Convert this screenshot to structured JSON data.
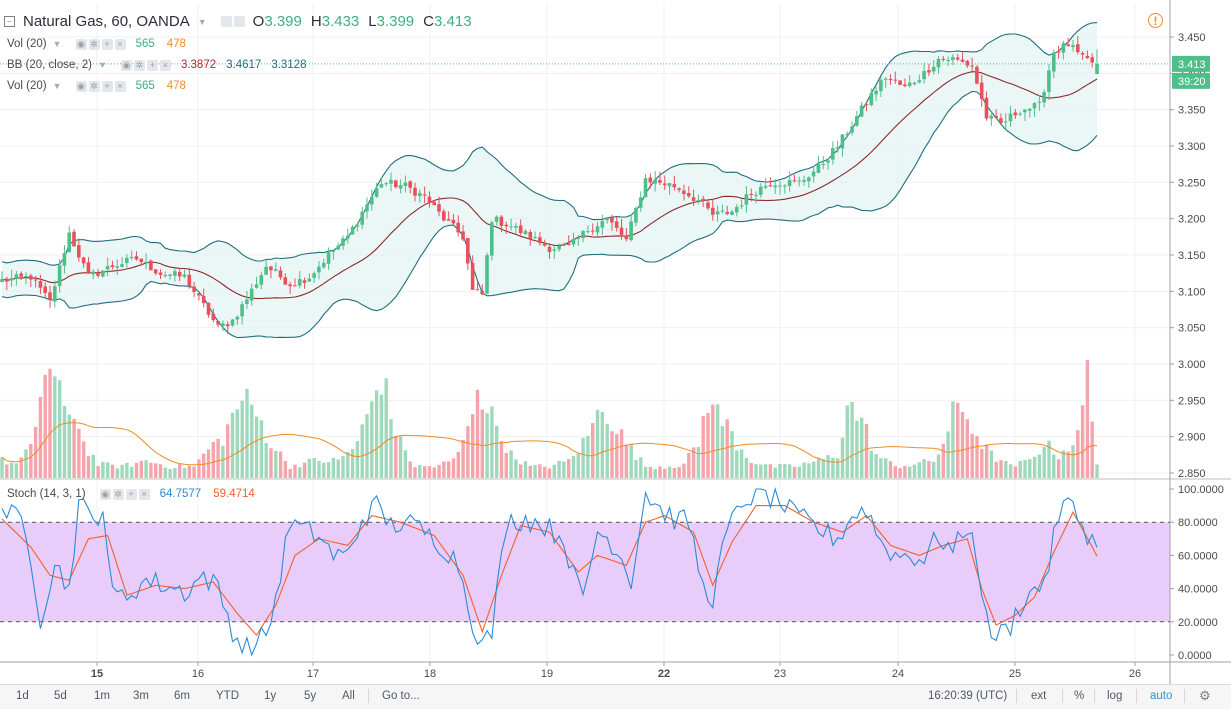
{
  "header": {
    "symbol_title": "Natural Gas, 60, OANDA",
    "ohlc": [
      {
        "key": "O",
        "value": "3.399"
      },
      {
        "key": "H",
        "value": "3.433"
      },
      {
        "key": "L",
        "value": "3.399"
      },
      {
        "key": "C",
        "value": "3.413"
      }
    ]
  },
  "legends": {
    "vol1": {
      "name": "Vol (20)",
      "v1": "565",
      "v2": "478"
    },
    "bb": {
      "name": "BB (20, close, 2)",
      "basis": "3.3872",
      "upper": "3.4617",
      "lower": "3.3128"
    },
    "vol2": {
      "name": "Vol (20)",
      "v1": "565",
      "v2": "478"
    },
    "stoch": {
      "name": "Stoch (14, 3, 1)",
      "k": "64.7577",
      "d": "59.4714"
    }
  },
  "price_tags": {
    "last": "3.413",
    "countdown": "39:20"
  },
  "bottom_bar": {
    "ranges": [
      "1d",
      "5d",
      "1m",
      "3m",
      "6m",
      "YTD",
      "1y",
      "5y",
      "All"
    ],
    "goto": "Go to...",
    "time": "16:20:39 (UTC)",
    "ext": "ext",
    "percent": "%",
    "log": "log",
    "auto": "auto"
  },
  "colors": {
    "up": "#4fbf89",
    "down": "#e8505b",
    "bb_line": "#1f6f7d",
    "bb_fill": "#e4f3f3",
    "basis": "#8c2c2c",
    "vol_up": "#9fd8bb",
    "vol_down": "#f4a5ab",
    "vol_ma": "#f08c1f",
    "stoch_k": "#2b8bd6",
    "stoch_d": "#f2602d",
    "stoch_band": "#e6c8fb"
  },
  "chart_data": [
    {
      "type": "candlestick",
      "title": "Natural Gas, 60, OANDA",
      "x_ticks": [
        "15",
        "16",
        "17",
        "18",
        "19",
        "22",
        "23",
        "24",
        "25",
        "26"
      ],
      "ylim": [
        2.83,
        3.47
      ],
      "y_ticks": [
        "3.450",
        "3.400",
        "3.350",
        "3.300",
        "3.250",
        "3.200",
        "3.150",
        "3.100",
        "3.050",
        "3.000",
        "2.950",
        "2.900",
        "2.850"
      ],
      "close_anchors": [
        [
          0,
          3.115
        ],
        [
          6,
          3.12
        ],
        [
          10,
          3.085
        ],
        [
          14,
          3.18
        ],
        [
          18,
          3.12
        ],
        [
          23,
          3.135
        ],
        [
          28,
          3.145
        ],
        [
          33,
          3.125
        ],
        [
          38,
          3.12
        ],
        [
          42,
          3.08
        ],
        [
          45,
          3.05
        ],
        [
          48,
          3.06
        ],
        [
          51,
          3.09
        ],
        [
          55,
          3.135
        ],
        [
          60,
          3.11
        ],
        [
          64,
          3.12
        ],
        [
          68,
          3.15
        ],
        [
          72,
          3.175
        ],
        [
          76,
          3.22
        ],
        [
          79,
          3.25
        ],
        [
          84,
          3.245
        ],
        [
          88,
          3.23
        ],
        [
          92,
          3.2
        ],
        [
          96,
          3.175
        ],
        [
          98,
          3.1
        ],
        [
          100,
          3.095
        ],
        [
          102,
          3.2
        ],
        [
          106,
          3.19
        ],
        [
          110,
          3.175
        ],
        [
          114,
          3.16
        ],
        [
          118,
          3.16
        ],
        [
          122,
          3.185
        ],
        [
          126,
          3.2
        ],
        [
          130,
          3.17
        ],
        [
          134,
          3.255
        ],
        [
          140,
          3.245
        ],
        [
          145,
          3.225
        ],
        [
          148,
          3.205
        ],
        [
          152,
          3.21
        ],
        [
          156,
          3.235
        ],
        [
          160,
          3.25
        ],
        [
          166,
          3.25
        ],
        [
          170,
          3.27
        ],
        [
          174,
          3.3
        ],
        [
          178,
          3.34
        ],
        [
          181,
          3.37
        ],
        [
          184,
          3.395
        ],
        [
          188,
          3.38
        ],
        [
          192,
          3.4
        ],
        [
          195,
          3.42
        ],
        [
          198,
          3.42
        ],
        [
          202,
          3.41
        ],
        [
          205,
          3.34
        ],
        [
          208,
          3.33
        ],
        [
          212,
          3.35
        ],
        [
          216,
          3.355
        ],
        [
          219,
          3.43
        ],
        [
          222,
          3.44
        ],
        [
          225,
          3.42
        ],
        [
          228,
          3.413
        ]
      ],
      "volume_anchors": [
        [
          0,
          0.15
        ],
        [
          3,
          0.12
        ],
        [
          6,
          0.25
        ],
        [
          9,
          0.95
        ],
        [
          11,
          0.85
        ],
        [
          13,
          0.55
        ],
        [
          15,
          0.6
        ],
        [
          17,
          0.3
        ],
        [
          20,
          0.12
        ],
        [
          25,
          0.1
        ],
        [
          30,
          0.15
        ],
        [
          35,
          0.1
        ],
        [
          40,
          0.1
        ],
        [
          43,
          0.25
        ],
        [
          46,
          0.35
        ],
        [
          50,
          0.7
        ],
        [
          53,
          0.55
        ],
        [
          56,
          0.3
        ],
        [
          60,
          0.1
        ],
        [
          65,
          0.15
        ],
        [
          70,
          0.15
        ],
        [
          74,
          0.3
        ],
        [
          77,
          0.65
        ],
        [
          79,
          0.9
        ],
        [
          81,
          0.55
        ],
        [
          83,
          0.3
        ],
        [
          86,
          0.1
        ],
        [
          90,
          0.1
        ],
        [
          94,
          0.15
        ],
        [
          97,
          0.4
        ],
        [
          99,
          0.85
        ],
        [
          101,
          0.6
        ],
        [
          103,
          0.45
        ],
        [
          106,
          0.2
        ],
        [
          110,
          0.1
        ],
        [
          114,
          0.1
        ],
        [
          118,
          0.15
        ],
        [
          121,
          0.3
        ],
        [
          123,
          0.45
        ],
        [
          125,
          0.65
        ],
        [
          127,
          0.5
        ],
        [
          130,
          0.3
        ],
        [
          134,
          0.1
        ],
        [
          138,
          0.1
        ],
        [
          142,
          0.12
        ],
        [
          145,
          0.3
        ],
        [
          147,
          0.7
        ],
        [
          149,
          0.55
        ],
        [
          151,
          0.45
        ],
        [
          153,
          0.3
        ],
        [
          156,
          0.15
        ],
        [
          160,
          0.1
        ],
        [
          165,
          0.1
        ],
        [
          170,
          0.15
        ],
        [
          174,
          0.2
        ],
        [
          176,
          0.65
        ],
        [
          178,
          0.55
        ],
        [
          180,
          0.4
        ],
        [
          182,
          0.2
        ],
        [
          186,
          0.1
        ],
        [
          190,
          0.12
        ],
        [
          194,
          0.15
        ],
        [
          196,
          0.3
        ],
        [
          198,
          0.55
        ],
        [
          200,
          0.6
        ],
        [
          202,
          0.45
        ],
        [
          204,
          0.3
        ],
        [
          206,
          0.2
        ],
        [
          210,
          0.1
        ],
        [
          214,
          0.15
        ],
        [
          217,
          0.3
        ],
        [
          220,
          0.2
        ],
        [
          224,
          0.35
        ],
        [
          226,
          0.9
        ],
        [
          228,
          0.15
        ]
      ],
      "series": [
        {
          "name": "Vol (20)"
        },
        {
          "name": "BB (20, close, 2)"
        }
      ]
    },
    {
      "type": "line",
      "title": "Stoch (14, 3, 1)",
      "ylim": [
        0,
        100
      ],
      "y_ticks": [
        "100.0000",
        "80.0000",
        "60.0000",
        "40.0000",
        "20.0000",
        "0.0000"
      ],
      "bands": [
        20,
        80
      ],
      "k_anchors": [
        [
          0,
          88
        ],
        [
          4,
          80
        ],
        [
          6,
          60
        ],
        [
          8,
          22
        ],
        [
          11,
          55
        ],
        [
          14,
          40
        ],
        [
          16,
          92
        ],
        [
          19,
          80
        ],
        [
          21,
          90
        ],
        [
          23,
          35
        ],
        [
          26,
          36
        ],
        [
          30,
          45
        ],
        [
          34,
          42
        ],
        [
          38,
          38
        ],
        [
          42,
          48
        ],
        [
          45,
          40
        ],
        [
          48,
          15
        ],
        [
          50,
          5
        ],
        [
          53,
          5
        ],
        [
          56,
          20
        ],
        [
          60,
          80
        ],
        [
          63,
          75
        ],
        [
          66,
          72
        ],
        [
          69,
          60
        ],
        [
          72,
          60
        ],
        [
          75,
          82
        ],
        [
          78,
          90
        ],
        [
          81,
          78
        ],
        [
          84,
          80
        ],
        [
          87,
          76
        ],
        [
          90,
          70
        ],
        [
          93,
          62
        ],
        [
          95,
          55
        ],
        [
          98,
          20
        ],
        [
          100,
          6
        ],
        [
          102,
          14
        ],
        [
          105,
          80
        ],
        [
          109,
          82
        ],
        [
          113,
          78
        ],
        [
          117,
          70
        ],
        [
          119,
          48
        ],
        [
          121,
          34
        ],
        [
          124,
          75
        ],
        [
          128,
          65
        ],
        [
          131,
          45
        ],
        [
          134,
          98
        ],
        [
          137,
          88
        ],
        [
          140,
          82
        ],
        [
          143,
          80
        ],
        [
          146,
          40
        ],
        [
          148,
          35
        ],
        [
          151,
          75
        ],
        [
          155,
          95
        ],
        [
          159,
          96
        ],
        [
          162,
          92
        ],
        [
          165,
          84
        ],
        [
          168,
          80
        ],
        [
          171,
          74
        ],
        [
          174,
          70
        ],
        [
          177,
          84
        ],
        [
          180,
          88
        ],
        [
          183,
          68
        ],
        [
          186,
          60
        ],
        [
          189,
          60
        ],
        [
          192,
          58
        ],
        [
          195,
          72
        ],
        [
          198,
          62
        ],
        [
          201,
          78
        ],
        [
          203,
          60
        ],
        [
          205,
          20
        ],
        [
          207,
          10
        ],
        [
          210,
          18
        ],
        [
          213,
          35
        ],
        [
          216,
          40
        ],
        [
          218,
          55
        ],
        [
          220,
          85
        ],
        [
          222,
          92
        ],
        [
          225,
          78
        ],
        [
          228,
          65
        ]
      ],
      "d_anchors": [
        [
          0,
          82
        ],
        [
          6,
          65
        ],
        [
          10,
          48
        ],
        [
          14,
          45
        ],
        [
          18,
          70
        ],
        [
          22,
          72
        ],
        [
          26,
          36
        ],
        [
          32,
          42
        ],
        [
          38,
          40
        ],
        [
          44,
          44
        ],
        [
          49,
          25
        ],
        [
          53,
          12
        ],
        [
          57,
          30
        ],
        [
          61,
          60
        ],
        [
          66,
          70
        ],
        [
          72,
          66
        ],
        [
          77,
          84
        ],
        [
          83,
          80
        ],
        [
          90,
          72
        ],
        [
          96,
          48
        ],
        [
          100,
          14
        ],
        [
          104,
          48
        ],
        [
          108,
          78
        ],
        [
          114,
          74
        ],
        [
          120,
          50
        ],
        [
          124,
          60
        ],
        [
          130,
          54
        ],
        [
          134,
          80
        ],
        [
          138,
          84
        ],
        [
          144,
          74
        ],
        [
          148,
          42
        ],
        [
          152,
          68
        ],
        [
          157,
          90
        ],
        [
          163,
          90
        ],
        [
          169,
          80
        ],
        [
          175,
          74
        ],
        [
          180,
          84
        ],
        [
          185,
          66
        ],
        [
          191,
          60
        ],
        [
          196,
          66
        ],
        [
          201,
          70
        ],
        [
          204,
          40
        ],
        [
          207,
          18
        ],
        [
          211,
          24
        ],
        [
          215,
          35
        ],
        [
          219,
          62
        ],
        [
          223,
          86
        ],
        [
          228,
          60
        ]
      ],
      "series": [
        {
          "name": "Stoch (14, 3, 1)",
          "last": 64.7577
        },
        {
          "last": 59.4714
        }
      ]
    }
  ]
}
